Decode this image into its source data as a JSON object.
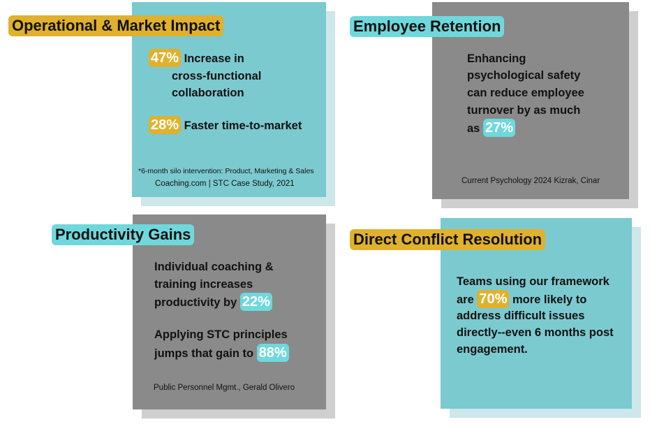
{
  "operational": {
    "title": "Operational & Market Impact",
    "stat1_value": "47%",
    "stat1_line1": "Increase in",
    "stat1_line2": "cross-functional",
    "stat1_line3": "collaboration",
    "stat2_value": "28%",
    "stat2_text": "Faster time-to-market",
    "footnote": "*6-month silo intervention: Product, Marketing & Sales",
    "source": "Coaching.com | STC Case Study, 2021"
  },
  "retention": {
    "title": "Employee Retention",
    "line1": "Enhancing",
    "line2": "psychological safety",
    "line3": "can reduce employee",
    "line4": "turnover by as much",
    "line5_prefix": "as",
    "value": "27%",
    "source": "Current Psychology 2024 Kizrak, Cinar"
  },
  "productivity": {
    "title": "Productivity Gains",
    "line1": "Individual coaching &",
    "line2": "training increases",
    "line3_prefix": "productivity by",
    "value1": "22%",
    "line4": "Applying STC principles",
    "line5_prefix": "jumps that gain to",
    "value2": "88%",
    "source": "Public Personnel Mgmt., Gerald Olivero"
  },
  "conflict": {
    "title": "Direct Conflict Resolution",
    "line1": "Teams using our framework",
    "line2_prefix": "are",
    "value": "70%",
    "line2_suffix": "more likely to",
    "line3": "address difficult issues",
    "line4": "directly--even 6 months post",
    "line5": "engagement."
  },
  "colors": {
    "teal_card": "#7bcacf",
    "gray_card": "#8a8a8a",
    "gold_highlight": "#e0b12c",
    "cyan_highlight": "#6fd8dc"
  }
}
